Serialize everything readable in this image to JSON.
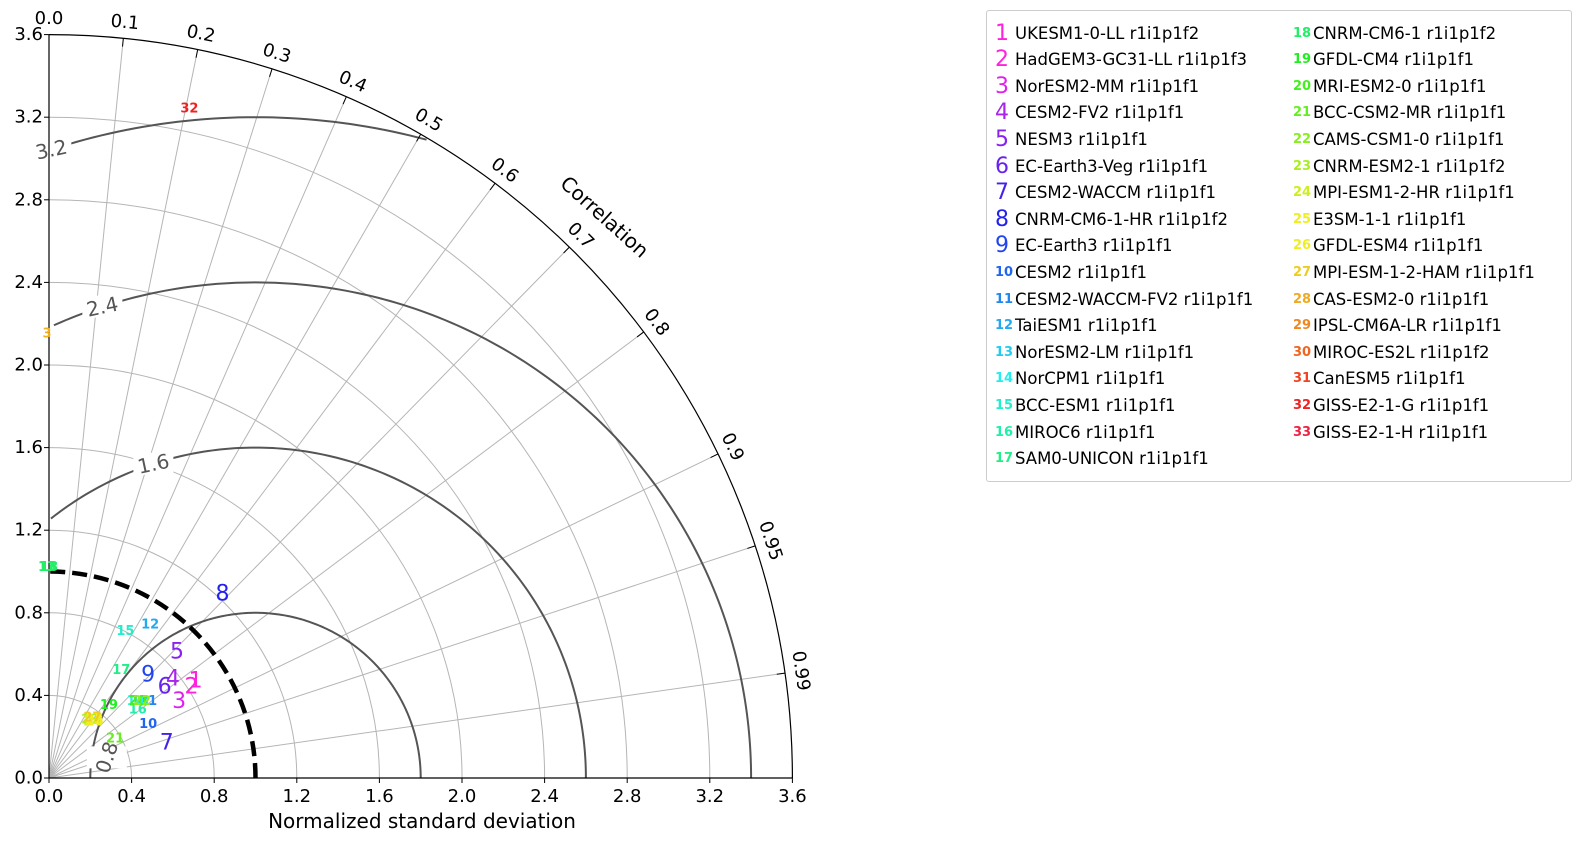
{
  "chart_data": {
    "type": "scatter",
    "subtype": "taylor-diagram",
    "xlabel": "Normalized standard deviation",
    "correlation_label": "Correlation",
    "std_range": [
      0,
      3.6
    ],
    "std_ticks": [
      "0.0",
      "0.4",
      "0.8",
      "1.2",
      "1.6",
      "2.0",
      "2.4",
      "2.8",
      "3.2",
      "3.6"
    ],
    "correlation_ticks": [
      0.0,
      0.1,
      0.2,
      0.3,
      0.4,
      0.5,
      0.6,
      0.7,
      0.8,
      0.9,
      0.95,
      0.99
    ],
    "correlation_tick_labels": [
      "0.0",
      "0.1",
      "0.2",
      "0.3",
      "0.4",
      "0.5",
      "0.6",
      "0.7",
      "0.8",
      "0.9",
      "0.95",
      "0.99"
    ],
    "rmsd_contours": [
      0.8,
      1.6,
      2.4,
      3.2
    ],
    "rmsd_contour_labels": [
      "0.8",
      "1.6",
      "2.4",
      "3.2"
    ],
    "reference_std": 1.0,
    "grid": true,
    "legend_position": "right",
    "series": [
      {
        "id": "1",
        "name": "UKESM1-0-LL r1i1p1f2",
        "color": "#ff22dd",
        "x": 0.71,
        "y": 0.47
      },
      {
        "id": "2",
        "name": "HadGEM3-GC31-LL r1i1p1f3",
        "color": "#ff22dd",
        "x": 0.69,
        "y": 0.44
      },
      {
        "id": "3",
        "name": "NorESM2-MM r1i1p1f1",
        "color": "#dd22ee",
        "x": 0.63,
        "y": 0.37
      },
      {
        "id": "4",
        "name": "CESM2-FV2 r1i1p1f1",
        "color": "#aa22ee",
        "x": 0.6,
        "y": 0.48
      },
      {
        "id": "5",
        "name": "NESM3 r1i1p1f1",
        "color": "#8822ee",
        "x": 0.62,
        "y": 0.61
      },
      {
        "id": "6",
        "name": "EC-Earth3-Veg r1i1p1f1",
        "color": "#6622ee",
        "x": 0.56,
        "y": 0.44
      },
      {
        "id": "7",
        "name": "CESM2-WACCM r1i1p1f1",
        "color": "#4422ee",
        "x": 0.57,
        "y": 0.17
      },
      {
        "id": "8",
        "name": "CNRM-CM6-1-HR r1i1p1f2",
        "color": "#2222ee",
        "x": 0.84,
        "y": 0.89
      },
      {
        "id": "9",
        "name": "EC-Earth3 r1i1p1f1",
        "color": "#2244ee",
        "x": 0.48,
        "y": 0.5
      },
      {
        "id": "10",
        "name": "CESM2 r1i1p1f1",
        "color": "#2266ee",
        "x": 0.48,
        "y": 0.26
      },
      {
        "id": "11",
        "name": "CESM2-WACCM-FV2 r1i1p1f1",
        "color": "#2288ee",
        "x": 0.48,
        "y": 0.37
      },
      {
        "id": "12",
        "name": "TaiESM1 r1i1p1f1",
        "color": "#22aaee",
        "x": 0.49,
        "y": 0.74
      },
      {
        "id": "13",
        "name": "NorESM2-LM r1i1p1f1",
        "color": "#22ccee",
        "x": 0.44,
        "y": 0.37
      },
      {
        "id": "14",
        "name": "NorCPM1 r1i1p1f1",
        "color": "#22eeee",
        "x": 0.42,
        "y": 0.37
      },
      {
        "id": "15",
        "name": "BCC-ESM1 r1i1p1f1",
        "color": "#22eecc",
        "x": 0.37,
        "y": 0.71
      },
      {
        "id": "16",
        "name": "MIROC6 r1i1p1f1",
        "color": "#22eeaa",
        "x": 0.43,
        "y": 0.33
      },
      {
        "id": "17",
        "name": "SAM0-UNICON r1i1p1f1",
        "color": "#22ee88",
        "x": 0.35,
        "y": 0.52
      },
      {
        "id": "18",
        "name": "CNRM-CM6-1 r1i1p1f2",
        "color": "#22ee66",
        "x": 0.0,
        "y": 1.02
      },
      {
        "id": "19",
        "name": "GFDL-CM4 r1i1p1f1",
        "color": "#22ee22",
        "x": 0.29,
        "y": 0.35
      },
      {
        "id": "20",
        "name": "MRI-ESM2-0 r1i1p1f1",
        "color": "#44ee22",
        "x": 0.43,
        "y": 0.37
      },
      {
        "id": "21",
        "name": "BCC-CSM2-MR r1i1p1f1",
        "color": "#66ee22",
        "x": 0.32,
        "y": 0.19
      },
      {
        "id": "22",
        "name": "CAMS-CSM1-0 r1i1p1f1",
        "color": "#88ee22",
        "x": 0.45,
        "y": 0.37
      },
      {
        "id": "23",
        "name": "CNRM-ESM2-1 r1i1p1f2",
        "color": "#aaee22",
        "x": 0.2,
        "y": 0.28
      },
      {
        "id": "24",
        "name": "MPI-ESM1-2-HR r1i1p1f1",
        "color": "#ccee22",
        "x": 0.21,
        "y": 0.27
      },
      {
        "id": "25",
        "name": "E3SM-1-1 r1i1p1f1",
        "color": "#eeee22",
        "x": 0.22,
        "y": 0.28
      },
      {
        "id": "26",
        "name": "GFDL-ESM4 r1i1p1f1",
        "color": "#eeee22",
        "x": 0.22,
        "y": 0.27
      },
      {
        "id": "27",
        "name": "MPI-ESM-1-2-HAM r1i1p1f1",
        "color": "#eecc22",
        "x": 0.21,
        "y": 0.29
      },
      {
        "id": "28",
        "name": "CAS-ESM2-0 r1i1p1f1",
        "color": "#eeaa22",
        "x": null,
        "y": null
      },
      {
        "id": "29",
        "name": "IPSL-CM6A-LR r1i1p1f1",
        "color": "#ee8822",
        "x": null,
        "y": null
      },
      {
        "id": "30",
        "name": "MIROC-ES2L r1i1p1f2",
        "color": "#ee6622",
        "x": null,
        "y": null
      },
      {
        "id": "31",
        "name": "CanESM5 r1i1p1f1",
        "color": "#ee4422",
        "x": null,
        "y": null
      },
      {
        "id": "32",
        "name": "GISS-E2-1-G r1i1p1f1",
        "color": "#ee2222",
        "x": 0.68,
        "y": 3.24
      },
      {
        "id": "33",
        "name": "GISS-E2-1-H r1i1p1f1",
        "color": "#ee2244",
        "x": null,
        "y": null
      }
    ],
    "partial_markers": [
      {
        "text": "3",
        "color": "#f0b020",
        "x": 0.0,
        "y": 2.15
      },
      {
        "text": "13",
        "color": "#22ee66",
        "x": 0.0,
        "y": 1.02
      }
    ]
  }
}
